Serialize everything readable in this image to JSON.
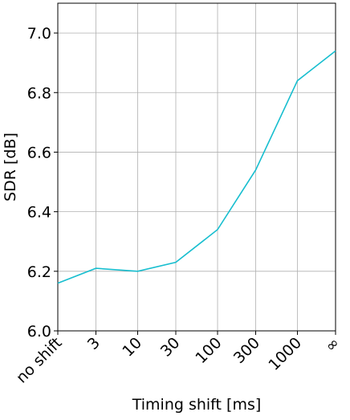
{
  "chart_data": {
    "type": "line",
    "x": [
      1,
      3,
      10,
      30,
      100,
      300,
      1000,
      3000
    ],
    "values": [
      6.16,
      6.21,
      6.2,
      6.23,
      6.34,
      6.54,
      6.84,
      6.94
    ],
    "color": "#17becf",
    "xlabel": "Timing shift [ms]",
    "ylabel": "SDR [dB]",
    "xscale": "log",
    "grid": true,
    "xlim": [
      1,
      3000
    ],
    "ylim": [
      6.0,
      7.1
    ],
    "xticks": [
      {
        "value": 1,
        "label": "no shift"
      },
      3,
      10,
      30,
      100,
      300,
      1000,
      {
        "value": 3000,
        "label": "∞"
      }
    ],
    "yticks": [
      {
        "value": 6.0,
        "label": "6.0"
      },
      6.2,
      6.4,
      6.6,
      6.8,
      {
        "value": 7.0,
        "label": "7.0"
      }
    ]
  }
}
